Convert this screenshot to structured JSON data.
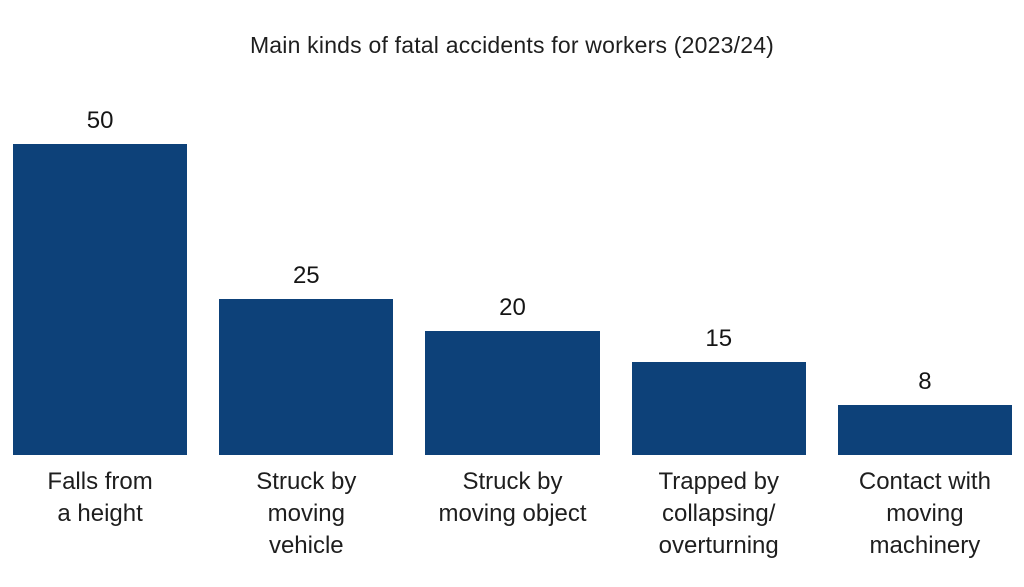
{
  "chart_data": {
    "type": "bar",
    "title": "Main kinds of fatal accidents for workers (2023/24)",
    "categories": [
      "Falls from\na height",
      "Struck by\nmoving\nvehicle",
      "Struck by\nmoving object",
      "Trapped by\ncollapsing/\noverturning",
      "Contact with\nmoving\nmachinery"
    ],
    "values": [
      50,
      25,
      20,
      15,
      8
    ],
    "value_labels_position": "above bars",
    "xlabel": "",
    "ylabel": "",
    "ylim": [
      0,
      50
    ],
    "grid": false,
    "legend_position": "none",
    "bar_color": "#0d4179",
    "text_color": "#1e1e1e",
    "background_color": "#ffffff"
  }
}
